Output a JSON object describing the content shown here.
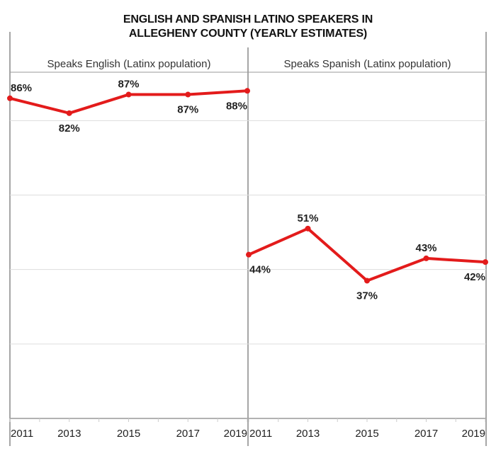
{
  "chart_data": {
    "type": "line",
    "title_lines": [
      "ENGLISH AND SPANISH LATINO SPEAKERS IN",
      "ALLEGHENY COUNTY (YEARLY ESTIMATES)"
    ],
    "x": [
      2011,
      2013,
      2015,
      2017,
      2019
    ],
    "x_tick_labels": [
      "2011",
      "2013",
      "2015",
      "2017",
      "2019"
    ],
    "ylim": [
      0,
      93
    ],
    "y_gridlines": [
      20,
      40,
      60,
      80
    ],
    "grid": true,
    "line_color": "#e31b1b",
    "panels": [
      {
        "name": "Speaks English (Latinx population)",
        "values": [
          86,
          82,
          87,
          87,
          88
        ],
        "data_labels": [
          "86%",
          "82%",
          "87%",
          "87%",
          "88%"
        ],
        "label_pos": [
          "above",
          "below",
          "above",
          "below",
          "below"
        ]
      },
      {
        "name": "Speaks Spanish (Latinx population)",
        "values": [
          44,
          51,
          37,
          43,
          42
        ],
        "data_labels": [
          "44%",
          "51%",
          "37%",
          "43%",
          "42%"
        ],
        "label_pos": [
          "below",
          "above",
          "below",
          "above",
          "below"
        ]
      }
    ]
  }
}
